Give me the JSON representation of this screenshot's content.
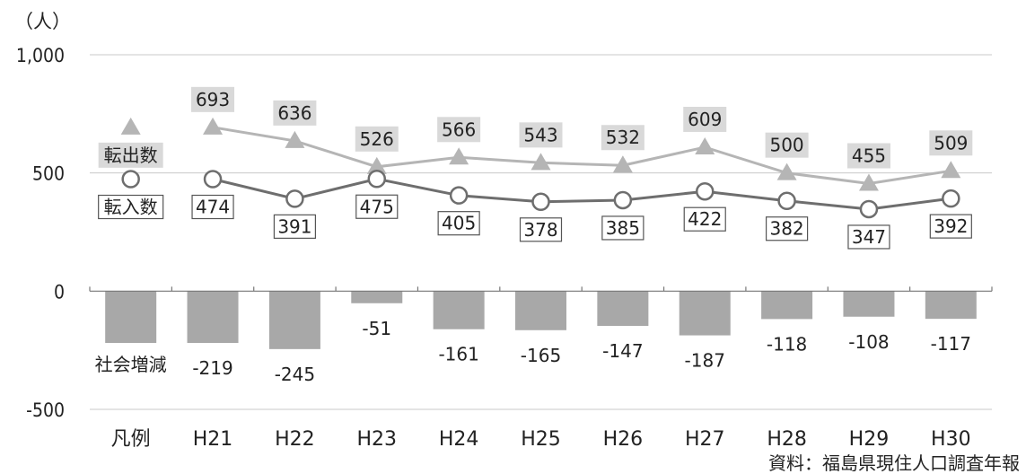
{
  "chart_data": {
    "type": "bar+line",
    "unit_label": "（人）",
    "legend_label": "凡例",
    "categories": [
      "H21",
      "H22",
      "H23",
      "H24",
      "H25",
      "H26",
      "H27",
      "H28",
      "H29",
      "H30"
    ],
    "y_ticks": [
      "1,000",
      "500",
      "0",
      "-500"
    ],
    "y_tick_values": [
      1000,
      500,
      0,
      -500
    ],
    "ylim": [
      -500,
      1000
    ],
    "series": [
      {
        "name": "転出数",
        "type": "line",
        "marker": "triangle",
        "color": "#b5b5b5",
        "values": [
          693,
          636,
          526,
          566,
          543,
          532,
          609,
          500,
          455,
          509
        ],
        "legend_marker_value": 693
      },
      {
        "name": "転入数",
        "type": "line",
        "marker": "circle",
        "color": "#6e6e6e",
        "values": [
          474,
          391,
          475,
          405,
          378,
          385,
          422,
          382,
          347,
          392
        ],
        "legend_marker_value": 474
      },
      {
        "name": "社会増減",
        "type": "bar",
        "color": "#a8a8a8",
        "values": [
          -219,
          -245,
          -51,
          -161,
          -165,
          -147,
          -187,
          -118,
          -108,
          -117
        ],
        "legend_marker_value": -219
      }
    ],
    "value_labels": {
      "転出数": [
        "693",
        "636",
        "526",
        "566",
        "543",
        "532",
        "609",
        "500",
        "455",
        "509"
      ],
      "転入数": [
        "474",
        "391",
        "475",
        "405",
        "378",
        "385",
        "422",
        "382",
        "347",
        "392"
      ],
      "社会増減": [
        "-219",
        "-245",
        "-51",
        "-161",
        "-165",
        "-147",
        "-187",
        "-118",
        "-108",
        "-117"
      ]
    },
    "grid": true,
    "source": "資料：福島県現住人口調査年報"
  }
}
